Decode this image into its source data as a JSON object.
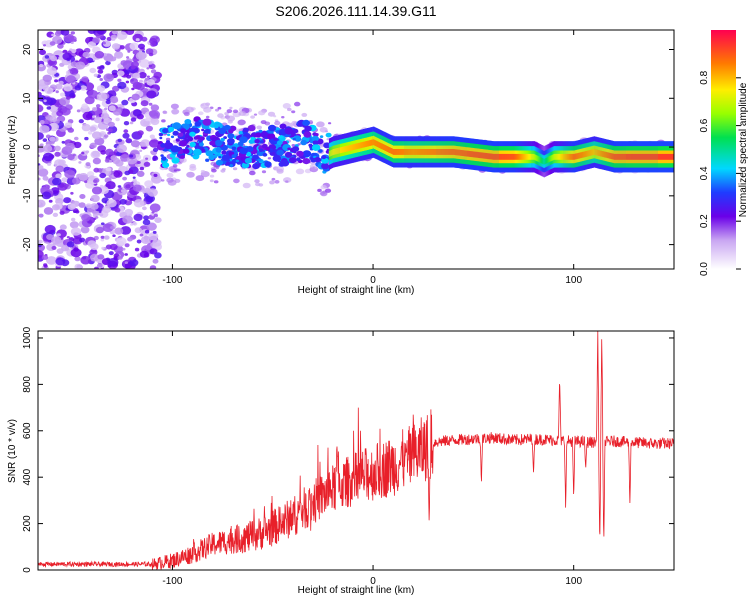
{
  "chart_data": [
    {
      "type": "heatmap",
      "title": "S206.2026.111.14.39.G11",
      "xlabel": "Height of straight line (km)",
      "ylabel": "Frequency (Hz)",
      "xlim": [
        -167,
        150
      ],
      "ylim": [
        -25,
        24
      ],
      "xticks": [
        -100,
        0,
        100
      ],
      "yticks": [
        -20,
        -10,
        0,
        10,
        20
      ],
      "colorbar": {
        "label": "Normalized spectral amplitude",
        "range": [
          0,
          1
        ],
        "ticks": [
          "0.0",
          "0.2",
          "0.4",
          "0.6",
          "0.8"
        ]
      },
      "track": {
        "x": [
          -167,
          -105,
          -90,
          -70,
          -50,
          -40,
          -30,
          -25,
          -20,
          -10,
          0,
          10,
          20,
          40,
          60,
          70,
          80,
          85,
          90,
          100,
          110,
          120,
          130,
          150
        ],
        "freq": [
          0,
          0,
          2,
          0,
          0,
          1,
          1,
          -2,
          -1,
          0,
          1,
          -1,
          -1,
          -1,
          -2,
          -2,
          -2,
          -3,
          -2,
          -2,
          -1,
          -2,
          -2,
          -2
        ],
        "amplitude": [
          0.2,
          0.2,
          0.25,
          0.3,
          0.35,
          0.35,
          0.45,
          0.6,
          0.75,
          0.8,
          0.85,
          0.88,
          0.85,
          0.9,
          0.92,
          0.9,
          0.7,
          0.5,
          0.7,
          0.9,
          0.8,
          0.92,
          0.93,
          0.93
        ]
      }
    },
    {
      "type": "line",
      "xlabel": "Height of straight line (km)",
      "ylabel": "SNR (10 * v/v)",
      "xlim": [
        -167,
        150
      ],
      "ylim": [
        0,
        1030
      ],
      "xticks": [
        -100,
        0,
        100
      ],
      "yticks": [
        0,
        200,
        400,
        600,
        800,
        1000
      ],
      "color": "#e8202a",
      "trend": {
        "x": [
          -167,
          -110,
          -100,
          -90,
          -80,
          -70,
          -60,
          -50,
          -40,
          -30,
          -20,
          -15,
          -10,
          0,
          10,
          20,
          25,
          30,
          40,
          50,
          60,
          70,
          80,
          90,
          100,
          110,
          120,
          130,
          140,
          150
        ],
        "y": [
          25,
          25,
          40,
          70,
          110,
          130,
          145,
          180,
          230,
          290,
          350,
          370,
          390,
          420,
          450,
          490,
          520,
          550,
          560,
          565,
          570,
          560,
          565,
          560,
          555,
          550,
          555,
          550,
          545,
          545
        ]
      },
      "spikes": [
        {
          "x": -18,
          "y": 545
        },
        {
          "x": 16,
          "y": 510
        },
        {
          "x": 28,
          "y": 170
        },
        {
          "x": 54,
          "y": 370
        },
        {
          "x": 80,
          "y": 410
        },
        {
          "x": 93,
          "y": 840
        },
        {
          "x": 96,
          "y": 260
        },
        {
          "x": 100,
          "y": 300
        },
        {
          "x": 106,
          "y": 430
        },
        {
          "x": 112,
          "y": 1030
        },
        {
          "x": 113,
          "y": 90
        },
        {
          "x": 114,
          "y": 1010
        },
        {
          "x": 115,
          "y": 100
        },
        {
          "x": 128,
          "y": 280
        }
      ]
    }
  ]
}
